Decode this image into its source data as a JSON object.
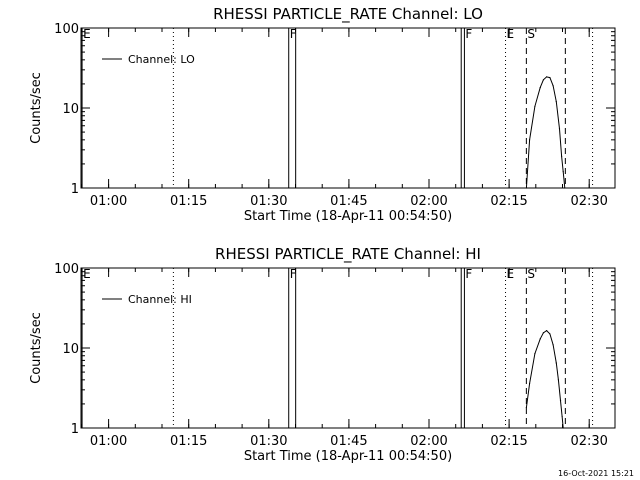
{
  "footer_timestamp": "16-Oct-2021 15:21",
  "chart_data": [
    {
      "type": "line",
      "title": "RHESSI PARTICLE_RATE Channel: LO",
      "xlabel": "Start Time (18-Apr-11 00:54:50)",
      "ylabel": "Counts/sec",
      "x_unit": "minutes after 00:54:50",
      "xlim": [
        0,
        100
      ],
      "ylim": [
        1,
        100
      ],
      "yscale": "log",
      "x_ticks": [
        {
          "t": 5.17,
          "label": "01:00"
        },
        {
          "t": 20.17,
          "label": "01:15"
        },
        {
          "t": 35.17,
          "label": "01:30"
        },
        {
          "t": 50.17,
          "label": "01:45"
        },
        {
          "t": 65.17,
          "label": "02:00"
        },
        {
          "t": 80.17,
          "label": "02:15"
        },
        {
          "t": 95.17,
          "label": "02:30"
        }
      ],
      "y_ticks": [
        {
          "v": 1,
          "label": "1"
        },
        {
          "v": 10,
          "label": "10"
        },
        {
          "v": 100,
          "label": "100"
        }
      ],
      "legend": {
        "entries": [
          "Channel: LO"
        ],
        "placement": "top-left"
      },
      "markers": [
        {
          "t": 0.2,
          "style": "solid",
          "label": "E"
        },
        {
          "t": 17.3,
          "style": "dotted",
          "label": ""
        },
        {
          "t": 38.9,
          "style": "solid",
          "label": "F"
        },
        {
          "t": 40.2,
          "style": "solid",
          "label": ""
        },
        {
          "t": 71.2,
          "style": "solid",
          "label": ""
        },
        {
          "t": 71.8,
          "style": "solid",
          "label": "F"
        },
        {
          "t": 79.5,
          "style": "dotted",
          "label": "E"
        },
        {
          "t": 83.4,
          "style": "dashed",
          "label": "S"
        },
        {
          "t": 90.7,
          "style": "dashed",
          "label": ""
        },
        {
          "t": 95.8,
          "style": "dotted",
          "label": ""
        }
      ],
      "series": [
        {
          "name": "Channel: LO",
          "x": [
            83.4,
            84.0,
            85.0,
            86.0,
            86.6,
            87.2,
            87.8,
            88.4,
            89.0,
            89.6,
            90.0,
            90.3,
            90.6
          ],
          "y": [
            1.0,
            4.0,
            10.5,
            18.0,
            22.5,
            24.5,
            24.0,
            19.0,
            12.0,
            5.5,
            2.5,
            1.6,
            1.0
          ]
        }
      ]
    },
    {
      "type": "line",
      "title": "RHESSI PARTICLE_RATE Channel: HI",
      "xlabel": "Start Time (18-Apr-11 00:54:50)",
      "ylabel": "Counts/sec",
      "x_unit": "minutes after 00:54:50",
      "xlim": [
        0,
        100
      ],
      "ylim": [
        1,
        100
      ],
      "yscale": "log",
      "x_ticks": [
        {
          "t": 5.17,
          "label": "01:00"
        },
        {
          "t": 20.17,
          "label": "01:15"
        },
        {
          "t": 35.17,
          "label": "01:30"
        },
        {
          "t": 50.17,
          "label": "01:45"
        },
        {
          "t": 65.17,
          "label": "02:00"
        },
        {
          "t": 80.17,
          "label": "02:15"
        },
        {
          "t": 95.17,
          "label": "02:30"
        }
      ],
      "y_ticks": [
        {
          "v": 1,
          "label": "1"
        },
        {
          "v": 10,
          "label": "10"
        },
        {
          "v": 100,
          "label": "100"
        }
      ],
      "legend": {
        "entries": [
          "Channel: HI"
        ],
        "placement": "top-left"
      },
      "markers": [
        {
          "t": 0.2,
          "style": "solid",
          "label": "E"
        },
        {
          "t": 17.3,
          "style": "dotted",
          "label": ""
        },
        {
          "t": 38.9,
          "style": "solid",
          "label": "F"
        },
        {
          "t": 40.2,
          "style": "solid",
          "label": ""
        },
        {
          "t": 71.2,
          "style": "solid",
          "label": ""
        },
        {
          "t": 71.8,
          "style": "solid",
          "label": "F"
        },
        {
          "t": 79.5,
          "style": "dotted",
          "label": "E"
        },
        {
          "t": 83.4,
          "style": "dashed",
          "label": "S"
        },
        {
          "t": 90.7,
          "style": "dashed",
          "label": ""
        },
        {
          "t": 95.8,
          "style": "dotted",
          "label": ""
        }
      ],
      "series": [
        {
          "name": "Channel: HI",
          "x": [
            83.4,
            84.0,
            85.0,
            86.0,
            86.6,
            87.2,
            87.8,
            88.4,
            89.0,
            89.4,
            89.8,
            90.1,
            90.3
          ],
          "y": [
            1.8,
            3.6,
            8.5,
            13.0,
            15.5,
            16.5,
            15.0,
            11.0,
            6.5,
            4.0,
            2.2,
            1.4,
            1.0
          ]
        }
      ]
    }
  ]
}
